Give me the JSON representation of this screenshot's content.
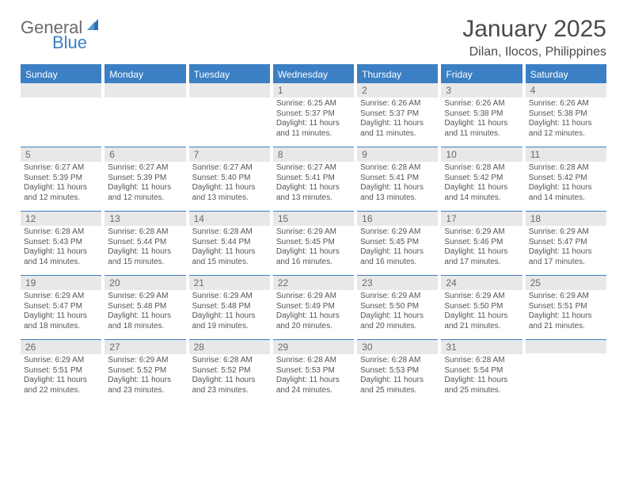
{
  "logo": {
    "word1": "General",
    "word2": "Blue"
  },
  "title": {
    "month": "January 2025",
    "location": "Dilan, Ilocos, Philippines"
  },
  "colors": {
    "header_bg": "#3b7fc4",
    "header_text": "#ffffff",
    "daynum_bg": "#e8e8e8",
    "body_text": "#555555",
    "title_text": "#4a4a4a",
    "rule": "#3b7fc4",
    "page_bg": "#ffffff",
    "logo_gray": "#6a6a6a",
    "logo_blue": "#3b7fc4"
  },
  "fonts": {
    "title_size_pt": 22,
    "location_size_pt": 12,
    "dayheader_size_pt": 9,
    "daynum_size_pt": 9,
    "body_size_pt": 7.5
  },
  "day_headers": [
    "Sunday",
    "Monday",
    "Tuesday",
    "Wednesday",
    "Thursday",
    "Friday",
    "Saturday"
  ],
  "weeks": [
    [
      {
        "n": "",
        "sr": "",
        "ss": "",
        "dl": ""
      },
      {
        "n": "",
        "sr": "",
        "ss": "",
        "dl": ""
      },
      {
        "n": "",
        "sr": "",
        "ss": "",
        "dl": ""
      },
      {
        "n": "1",
        "sr": "6:25 AM",
        "ss": "5:37 PM",
        "dl": "11 hours and 11 minutes."
      },
      {
        "n": "2",
        "sr": "6:26 AM",
        "ss": "5:37 PM",
        "dl": "11 hours and 11 minutes."
      },
      {
        "n": "3",
        "sr": "6:26 AM",
        "ss": "5:38 PM",
        "dl": "11 hours and 11 minutes."
      },
      {
        "n": "4",
        "sr": "6:26 AM",
        "ss": "5:38 PM",
        "dl": "11 hours and 12 minutes."
      }
    ],
    [
      {
        "n": "5",
        "sr": "6:27 AM",
        "ss": "5:39 PM",
        "dl": "11 hours and 12 minutes."
      },
      {
        "n": "6",
        "sr": "6:27 AM",
        "ss": "5:39 PM",
        "dl": "11 hours and 12 minutes."
      },
      {
        "n": "7",
        "sr": "6:27 AM",
        "ss": "5:40 PM",
        "dl": "11 hours and 13 minutes."
      },
      {
        "n": "8",
        "sr": "6:27 AM",
        "ss": "5:41 PM",
        "dl": "11 hours and 13 minutes."
      },
      {
        "n": "9",
        "sr": "6:28 AM",
        "ss": "5:41 PM",
        "dl": "11 hours and 13 minutes."
      },
      {
        "n": "10",
        "sr": "6:28 AM",
        "ss": "5:42 PM",
        "dl": "11 hours and 14 minutes."
      },
      {
        "n": "11",
        "sr": "6:28 AM",
        "ss": "5:42 PM",
        "dl": "11 hours and 14 minutes."
      }
    ],
    [
      {
        "n": "12",
        "sr": "6:28 AM",
        "ss": "5:43 PM",
        "dl": "11 hours and 14 minutes."
      },
      {
        "n": "13",
        "sr": "6:28 AM",
        "ss": "5:44 PM",
        "dl": "11 hours and 15 minutes."
      },
      {
        "n": "14",
        "sr": "6:28 AM",
        "ss": "5:44 PM",
        "dl": "11 hours and 15 minutes."
      },
      {
        "n": "15",
        "sr": "6:29 AM",
        "ss": "5:45 PM",
        "dl": "11 hours and 16 minutes."
      },
      {
        "n": "16",
        "sr": "6:29 AM",
        "ss": "5:45 PM",
        "dl": "11 hours and 16 minutes."
      },
      {
        "n": "17",
        "sr": "6:29 AM",
        "ss": "5:46 PM",
        "dl": "11 hours and 17 minutes."
      },
      {
        "n": "18",
        "sr": "6:29 AM",
        "ss": "5:47 PM",
        "dl": "11 hours and 17 minutes."
      }
    ],
    [
      {
        "n": "19",
        "sr": "6:29 AM",
        "ss": "5:47 PM",
        "dl": "11 hours and 18 minutes."
      },
      {
        "n": "20",
        "sr": "6:29 AM",
        "ss": "5:48 PM",
        "dl": "11 hours and 18 minutes."
      },
      {
        "n": "21",
        "sr": "6:29 AM",
        "ss": "5:48 PM",
        "dl": "11 hours and 19 minutes."
      },
      {
        "n": "22",
        "sr": "6:29 AM",
        "ss": "5:49 PM",
        "dl": "11 hours and 20 minutes."
      },
      {
        "n": "23",
        "sr": "6:29 AM",
        "ss": "5:50 PM",
        "dl": "11 hours and 20 minutes."
      },
      {
        "n": "24",
        "sr": "6:29 AM",
        "ss": "5:50 PM",
        "dl": "11 hours and 21 minutes."
      },
      {
        "n": "25",
        "sr": "6:29 AM",
        "ss": "5:51 PM",
        "dl": "11 hours and 21 minutes."
      }
    ],
    [
      {
        "n": "26",
        "sr": "6:29 AM",
        "ss": "5:51 PM",
        "dl": "11 hours and 22 minutes."
      },
      {
        "n": "27",
        "sr": "6:29 AM",
        "ss": "5:52 PM",
        "dl": "11 hours and 23 minutes."
      },
      {
        "n": "28",
        "sr": "6:28 AM",
        "ss": "5:52 PM",
        "dl": "11 hours and 23 minutes."
      },
      {
        "n": "29",
        "sr": "6:28 AM",
        "ss": "5:53 PM",
        "dl": "11 hours and 24 minutes."
      },
      {
        "n": "30",
        "sr": "6:28 AM",
        "ss": "5:53 PM",
        "dl": "11 hours and 25 minutes."
      },
      {
        "n": "31",
        "sr": "6:28 AM",
        "ss": "5:54 PM",
        "dl": "11 hours and 25 minutes."
      },
      {
        "n": "",
        "sr": "",
        "ss": "",
        "dl": ""
      }
    ]
  ],
  "labels": {
    "sunrise": "Sunrise:",
    "sunset": "Sunset:",
    "daylight": "Daylight:"
  }
}
